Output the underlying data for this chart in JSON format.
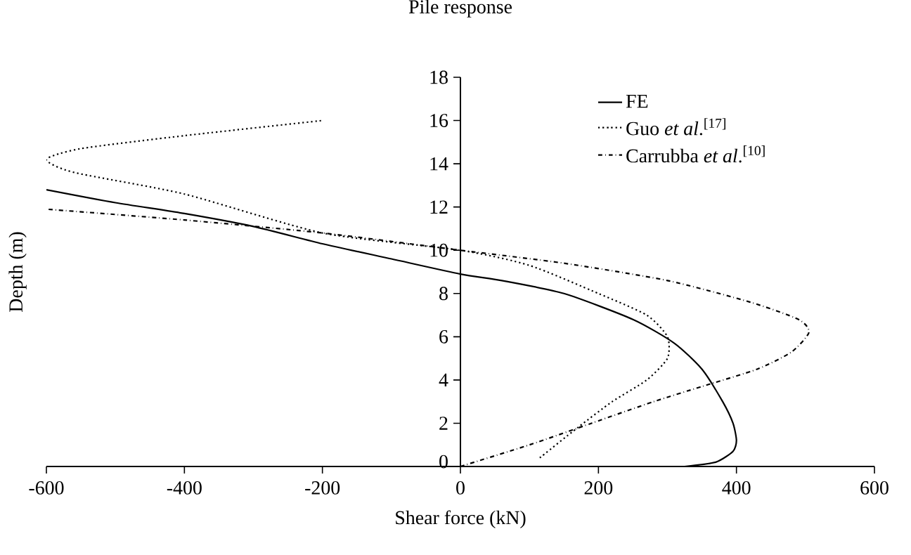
{
  "chart_data": {
    "type": "line",
    "title": "Pile response",
    "xlabel": "Shear force (kN)",
    "ylabel": "Depth (m)",
    "xlim": [
      -600,
      600
    ],
    "xticks": [
      -600,
      -400,
      -200,
      0,
      200,
      400,
      600
    ],
    "ylim": [
      0,
      18
    ],
    "yticks": [
      0,
      2,
      4,
      6,
      8,
      10,
      12,
      14,
      16,
      18
    ],
    "legend": "top right",
    "series": [
      {
        "name": "FE",
        "color": "#000000",
        "line_style": "solid",
        "x": [
          325,
          370,
          395,
          400,
          395,
          380,
          350,
          310,
          250,
          150,
          60,
          0,
          -100,
          -200,
          -300,
          -400,
          -500,
          -600
        ],
        "values": [
          0,
          0.2,
          0.7,
          1.2,
          2,
          3,
          4.5,
          5.7,
          6.8,
          8,
          8.6,
          8.9,
          9.6,
          10.3,
          11.1,
          11.7,
          12.2,
          12.8
        ]
      },
      {
        "name": "Guo *et al*.$^{[17]}$",
        "color": "#000000",
        "line_style": "dotted",
        "x": [
          115,
          170,
          220,
          270,
          300,
          300,
          270,
          200,
          100,
          0,
          -200,
          -400,
          -560,
          -600,
          -550,
          -400,
          -200
        ],
        "values": [
          0.4,
          1.8,
          3,
          4,
          5,
          6,
          7,
          8,
          9.3,
          10,
          10.8,
          12.6,
          13.6,
          14.2,
          14.7,
          15.3,
          16
        ]
      },
      {
        "name": "Carrubba *et al*.$^{[10]}$",
        "color": "#000000",
        "line_style": "dashdotted",
        "x": [
          0,
          100,
          190,
          280,
          350,
          430,
          480,
          505,
          490,
          420,
          300,
          150,
          0,
          -200,
          -400,
          -600
        ],
        "values": [
          0,
          1,
          2,
          3,
          3.7,
          4.5,
          5.3,
          6.2,
          6.8,
          7.6,
          8.6,
          9.4,
          10,
          10.8,
          11.4,
          11.9
        ]
      }
    ]
  }
}
